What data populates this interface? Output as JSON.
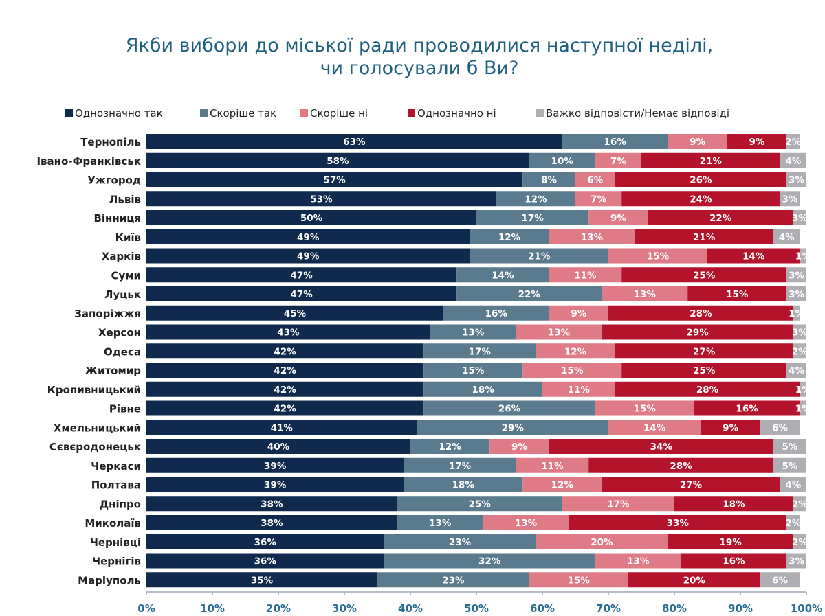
{
  "chart_data": {
    "type": "bar",
    "orientation": "horizontal",
    "stacked": true,
    "title": "Якби вибори до міської ради проводилися наступної неділі,",
    "title_line2": "чи голосували б Ви?",
    "xlabel": "",
    "ylabel": "",
    "xlim": [
      0,
      100
    ],
    "x_ticks": [
      "0%",
      "10%",
      "20%",
      "30%",
      "40%",
      "50%",
      "60%",
      "70%",
      "80%",
      "90%",
      "100%"
    ],
    "grid": false,
    "legend_position": "top",
    "categories": [
      "Тернопіль",
      "Івано-Франківськ",
      "Ужгород",
      "Львів",
      "Вінниця",
      "Київ",
      "Харків",
      "Суми",
      "Луцьк",
      "Запоріжжя",
      "Херсон",
      "Одеса",
      "Житомир",
      "Кропивницький",
      "Рівне",
      "Хмельницький",
      "Сєвєродонецьк",
      "Черкаси",
      "Полтава",
      "Дніпро",
      "Миколаїв",
      "Чернівці",
      "Чернігів",
      "Маріуполь"
    ],
    "series": [
      {
        "name": "Однозначно так",
        "color": "#0f2a4d",
        "values": [
          63,
          58,
          57,
          53,
          50,
          49,
          49,
          47,
          47,
          45,
          43,
          42,
          42,
          42,
          42,
          41,
          40,
          39,
          39,
          38,
          38,
          36,
          36,
          35
        ]
      },
      {
        "name": "Скоріше так",
        "color": "#5a7a8e",
        "values": [
          16,
          10,
          8,
          12,
          17,
          12,
          21,
          14,
          22,
          16,
          13,
          17,
          15,
          18,
          26,
          29,
          12,
          17,
          18,
          25,
          13,
          23,
          32,
          23
        ]
      },
      {
        "name": "Скоріше ні",
        "color": "#df7a87",
        "values": [
          9,
          7,
          6,
          7,
          9,
          13,
          15,
          11,
          13,
          9,
          13,
          12,
          15,
          11,
          15,
          14,
          9,
          11,
          12,
          17,
          13,
          20,
          13,
          15
        ]
      },
      {
        "name": "Однозначно ні",
        "color": "#b3142c",
        "values": [
          9,
          21,
          26,
          24,
          22,
          21,
          14,
          25,
          15,
          28,
          29,
          27,
          25,
          28,
          16,
          9,
          34,
          28,
          27,
          18,
          33,
          19,
          16,
          20
        ]
      },
      {
        "name": "Важко відповісти/Немає відповіді",
        "color": "#afafb3",
        "values": [
          2,
          4,
          3,
          3,
          3,
          4,
          1,
          3,
          3,
          1,
          3,
          2,
          4,
          1,
          1,
          6,
          5,
          5,
          4,
          2,
          2,
          2,
          3,
          6
        ]
      }
    ]
  }
}
